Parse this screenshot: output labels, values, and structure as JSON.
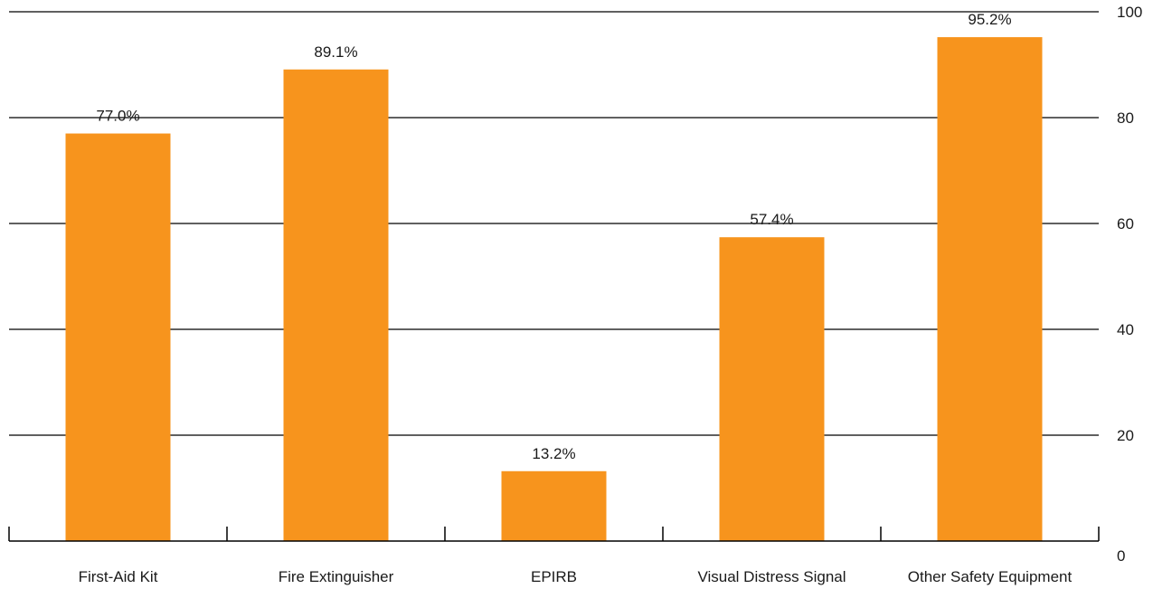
{
  "chart_data": {
    "type": "bar",
    "categories": [
      "First-Aid Kit",
      "Fire Extinguisher",
      "EPIRB",
      "Visual Distress Signal",
      "Other Safety Equipment"
    ],
    "values": [
      77.0,
      89.1,
      13.2,
      57.4,
      95.2
    ],
    "data_labels": [
      "77.0%",
      "89.1%",
      "13.2%",
      "57.4%",
      "95.2%"
    ],
    "ylim": [
      0,
      100
    ],
    "yticks": [
      0,
      20,
      40,
      60,
      80,
      100
    ],
    "ytick_labels": [
      "0",
      "20",
      "40",
      "60",
      "80",
      "100"
    ],
    "y_axis_position": "right",
    "grid": true,
    "colors": {
      "bar": "#f7941d",
      "grid": "#000000"
    }
  }
}
